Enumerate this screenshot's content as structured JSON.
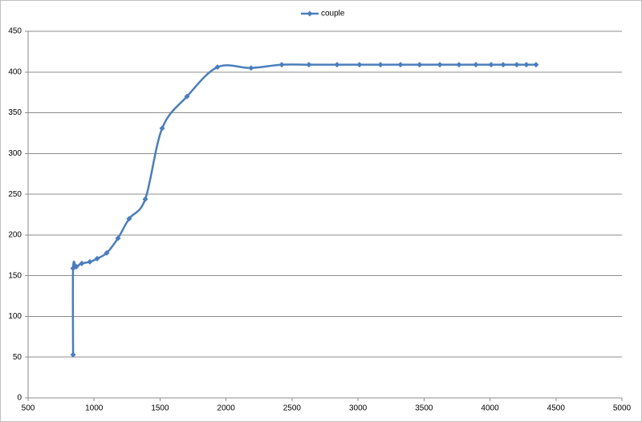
{
  "chart_data": {
    "type": "scatter",
    "smooth": true,
    "grid": true,
    "legend": "top",
    "x": [
      841,
      841,
      865,
      907,
      968,
      1023,
      1096,
      1181,
      1266,
      1388,
      1516,
      1704,
      1935,
      2190,
      2422,
      2628,
      2841,
      3011,
      3170,
      3322,
      3467,
      3620,
      3765,
      3893,
      4009,
      4100,
      4203,
      4276,
      4349
    ],
    "series": [
      {
        "name": "couple",
        "color": "#4a7ebb",
        "values": [
          53,
          159,
          161,
          165,
          167,
          171,
          178,
          196,
          220,
          244,
          331,
          370,
          406,
          405,
          409,
          409,
          409,
          409,
          409,
          409,
          409,
          409,
          409,
          409,
          409,
          409,
          409,
          409,
          409
        ]
      }
    ],
    "xlim": [
      500,
      5000
    ],
    "xticks": [
      500,
      1000,
      1500,
      2000,
      2500,
      3000,
      3500,
      4000,
      4500,
      5000
    ],
    "ylim": [
      0,
      450
    ],
    "yticks": [
      0,
      50,
      100,
      150,
      200,
      250,
      300,
      350,
      400,
      450
    ]
  }
}
